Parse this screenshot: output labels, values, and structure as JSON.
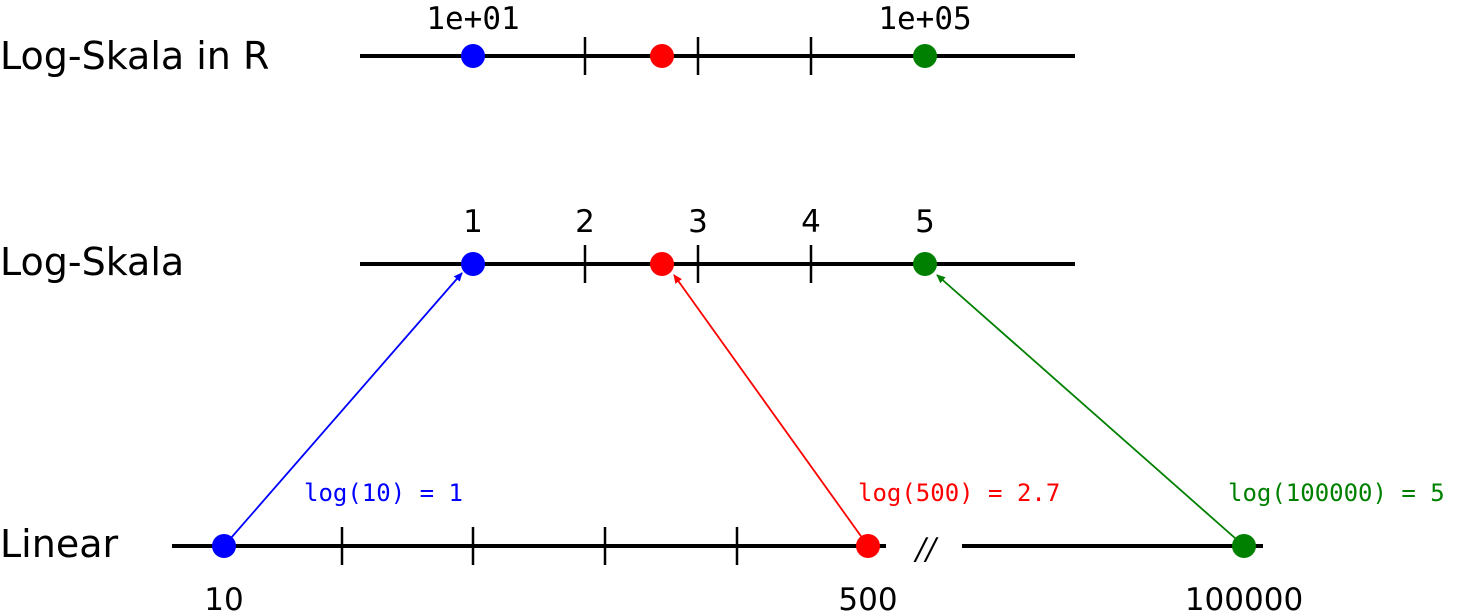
{
  "rows": {
    "log_r": {
      "label": "Log-Skala in R",
      "tick_labels": [
        "1e+01",
        "1e+05"
      ]
    },
    "log": {
      "label": "Log-Skala",
      "tick_labels": [
        "1",
        "2",
        "3",
        "4",
        "5"
      ]
    },
    "linear": {
      "label": "Linear",
      "tick_labels": [
        "10",
        "500",
        "100000"
      ],
      "break_symbol": "//"
    }
  },
  "mappings": [
    {
      "value": 10,
      "log_value": 1,
      "text": "log(10) = 1",
      "color": "#0000ff"
    },
    {
      "value": 500,
      "log_value": 2.7,
      "text": "log(500) = 2.7",
      "color": "#ff0000"
    },
    {
      "value": 100000,
      "log_value": 5,
      "text": "log(100000) = 5",
      "color": "#008000"
    }
  ],
  "colors": {
    "axis": "#000000",
    "blue": "#0000ff",
    "red": "#ff0000",
    "green": "#008000"
  }
}
